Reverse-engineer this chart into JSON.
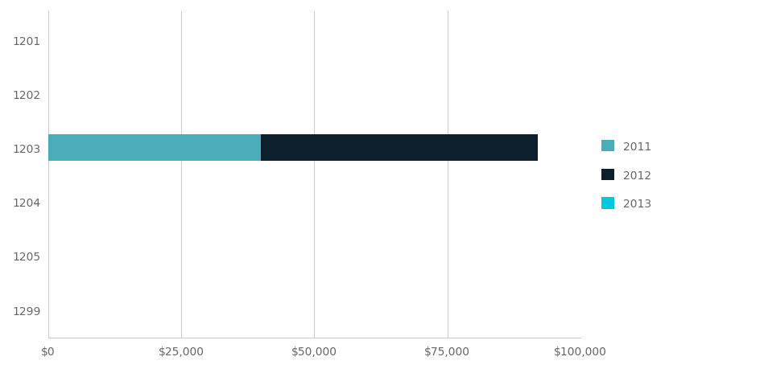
{
  "categories": [
    "1201",
    "1202",
    "1203",
    "1204",
    "1205",
    "1299"
  ],
  "series": [
    {
      "label": "2011",
      "color": "#4AACB8",
      "values": [
        0,
        0,
        40000,
        0,
        0,
        0
      ]
    },
    {
      "label": "2012",
      "color": "#0D1F2D",
      "values": [
        0,
        0,
        52000,
        0,
        0,
        0
      ]
    },
    {
      "label": "2013",
      "color": "#00C8E0",
      "values": [
        0,
        0,
        0,
        0,
        0,
        0
      ]
    }
  ],
  "xlim": [
    0,
    100000
  ],
  "xticks": [
    0,
    25000,
    50000,
    75000,
    100000
  ],
  "xtick_labels": [
    "$0",
    "$25,000",
    "$50,000",
    "$75,000",
    "$100,000"
  ],
  "background_color": "#ffffff",
  "grid_color": "#cccccc",
  "tick_label_color": "#666666",
  "bar_height": 0.5,
  "legend_fontsize": 10,
  "tick_fontsize": 10,
  "figsize": [
    9.45,
    4.6
  ],
  "dpi": 100
}
